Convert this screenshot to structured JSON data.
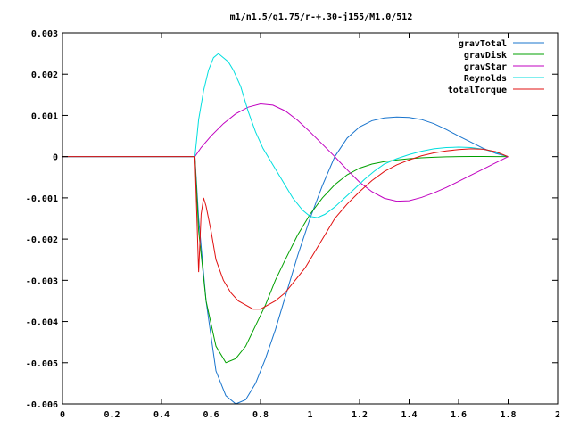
{
  "chart_data": {
    "type": "line",
    "title": "m1/n1.5/q1.75/r-+.30-j155/M1.0/512",
    "xlabel": "",
    "ylabel": "",
    "xlim": [
      0,
      2
    ],
    "ylim": [
      -0.006,
      0.003
    ],
    "x_ticks": [
      0,
      0.2,
      0.4,
      0.6,
      0.8,
      1,
      1.2,
      1.4,
      1.6,
      1.8,
      2
    ],
    "x_tick_labels": [
      "0",
      "0.2",
      "0.4",
      "0.6",
      "0.8",
      "1",
      "1.2",
      "1.4",
      "1.6",
      "1.8",
      "2"
    ],
    "y_ticks": [
      0.003,
      0.002,
      0.001,
      0,
      -0.001,
      -0.002,
      -0.003,
      -0.004,
      -0.005,
      -0.006
    ],
    "y_tick_labels": [
      "0.003",
      "0.002",
      "0.001",
      "0",
      "-0.001",
      "-0.002",
      "-0.003",
      "-0.004",
      "-0.005",
      "-0.006"
    ],
    "grid": false,
    "legend_position": "top-right",
    "series": [
      {
        "name": "gravTotal",
        "color": "#1874cd",
        "x": [
          0,
          0.535,
          0.55,
          0.58,
          0.62,
          0.66,
          0.7,
          0.74,
          0.78,
          0.82,
          0.86,
          0.9,
          0.95,
          1.0,
          1.05,
          1.1,
          1.15,
          1.2,
          1.25,
          1.3,
          1.35,
          1.4,
          1.45,
          1.5,
          1.55,
          1.6,
          1.65,
          1.7,
          1.75,
          1.8
        ],
        "y": [
          0,
          0,
          -0.0015,
          -0.0035,
          -0.0052,
          -0.0058,
          -0.006,
          -0.0059,
          -0.0055,
          -0.0049,
          -0.0042,
          -0.0034,
          -0.0024,
          -0.0015,
          -0.0007,
          0.0,
          0.00045,
          0.00072,
          0.00087,
          0.00094,
          0.00096,
          0.00095,
          0.0009,
          0.0008,
          0.00066,
          0.0005,
          0.00035,
          0.0002,
          8e-05,
          0.0
        ]
      },
      {
        "name": "gravDisk",
        "color": "#00a000",
        "x": [
          0,
          0.535,
          0.55,
          0.58,
          0.62,
          0.66,
          0.7,
          0.74,
          0.78,
          0.82,
          0.86,
          0.9,
          0.95,
          1.0,
          1.05,
          1.1,
          1.15,
          1.2,
          1.25,
          1.3,
          1.35,
          1.4,
          1.45,
          1.5,
          1.55,
          1.6,
          1.65,
          1.7,
          1.75,
          1.8
        ],
        "y": [
          0,
          0,
          -0.0018,
          -0.0035,
          -0.0046,
          -0.005,
          -0.0049,
          -0.0046,
          -0.0041,
          -0.0036,
          -0.003,
          -0.0025,
          -0.0019,
          -0.0014,
          -0.001,
          -0.00068,
          -0.00044,
          -0.00028,
          -0.00018,
          -0.00012,
          -8e-05,
          -5e-05,
          -3e-05,
          -1.5e-05,
          -5e-06,
          2e-06,
          5e-06,
          4e-06,
          2e-06,
          0.0
        ]
      },
      {
        "name": "gravStar",
        "color": "#c000c0",
        "x": [
          0,
          0.535,
          0.56,
          0.6,
          0.65,
          0.7,
          0.75,
          0.8,
          0.85,
          0.9,
          0.95,
          1.0,
          1.05,
          1.1,
          1.15,
          1.2,
          1.25,
          1.3,
          1.35,
          1.4,
          1.45,
          1.5,
          1.55,
          1.6,
          1.65,
          1.7,
          1.75,
          1.8
        ],
        "y": [
          0,
          0,
          0.00022,
          0.0005,
          0.0008,
          0.00104,
          0.0012,
          0.00128,
          0.00125,
          0.00111,
          0.00088,
          0.0006,
          0.0003,
          0.0,
          -0.00032,
          -0.00062,
          -0.00085,
          -0.00101,
          -0.00108,
          -0.00107,
          -0.00099,
          -0.00088,
          -0.00075,
          -0.0006,
          -0.00045,
          -0.0003,
          -0.00015,
          0.0
        ]
      },
      {
        "name": "Reynolds",
        "color": "#00dede",
        "x": [
          0,
          0.535,
          0.55,
          0.57,
          0.59,
          0.61,
          0.63,
          0.65,
          0.67,
          0.69,
          0.72,
          0.75,
          0.78,
          0.81,
          0.85,
          0.89,
          0.93,
          0.97,
          1.0,
          1.03,
          1.06,
          1.1,
          1.14,
          1.18,
          1.22,
          1.26,
          1.3,
          1.35,
          1.4,
          1.45,
          1.5,
          1.55,
          1.6,
          1.65,
          1.7,
          1.75,
          1.8
        ],
        "y": [
          0,
          0,
          0.0009,
          0.0016,
          0.0021,
          0.0024,
          0.0025,
          0.0024,
          0.0023,
          0.0021,
          0.0017,
          0.0011,
          0.0006,
          0.0002,
          -0.0002,
          -0.0006,
          -0.001,
          -0.0013,
          -0.00145,
          -0.00148,
          -0.0014,
          -0.00122,
          -0.001,
          -0.00078,
          -0.00055,
          -0.00035,
          -0.00018,
          -5e-05,
          5e-05,
          0.00013,
          0.00019,
          0.00022,
          0.00023,
          0.00022,
          0.00018,
          0.0001,
          0.0
        ]
      },
      {
        "name": "totalTorque",
        "color": "#e01010",
        "x": [
          0,
          0.535,
          0.55,
          0.56,
          0.57,
          0.58,
          0.6,
          0.62,
          0.65,
          0.68,
          0.71,
          0.74,
          0.77,
          0.8,
          0.83,
          0.86,
          0.9,
          0.94,
          0.98,
          1.02,
          1.06,
          1.1,
          1.15,
          1.2,
          1.25,
          1.3,
          1.35,
          1.4,
          1.45,
          1.5,
          1.55,
          1.6,
          1.65,
          1.7,
          1.75,
          1.8
        ],
        "y": [
          0,
          0,
          -0.0028,
          -0.0014,
          -0.001,
          -0.0012,
          -0.0018,
          -0.0025,
          -0.003,
          -0.0033,
          -0.0035,
          -0.0036,
          -0.0037,
          -0.0037,
          -0.0036,
          -0.0035,
          -0.0033,
          -0.003,
          -0.0027,
          -0.0023,
          -0.0019,
          -0.0015,
          -0.00115,
          -0.00085,
          -0.00058,
          -0.00036,
          -0.0002,
          -8e-05,
          2e-05,
          9e-05,
          0.00014,
          0.00017,
          0.00019,
          0.00018,
          0.00012,
          0.0
        ]
      }
    ]
  }
}
